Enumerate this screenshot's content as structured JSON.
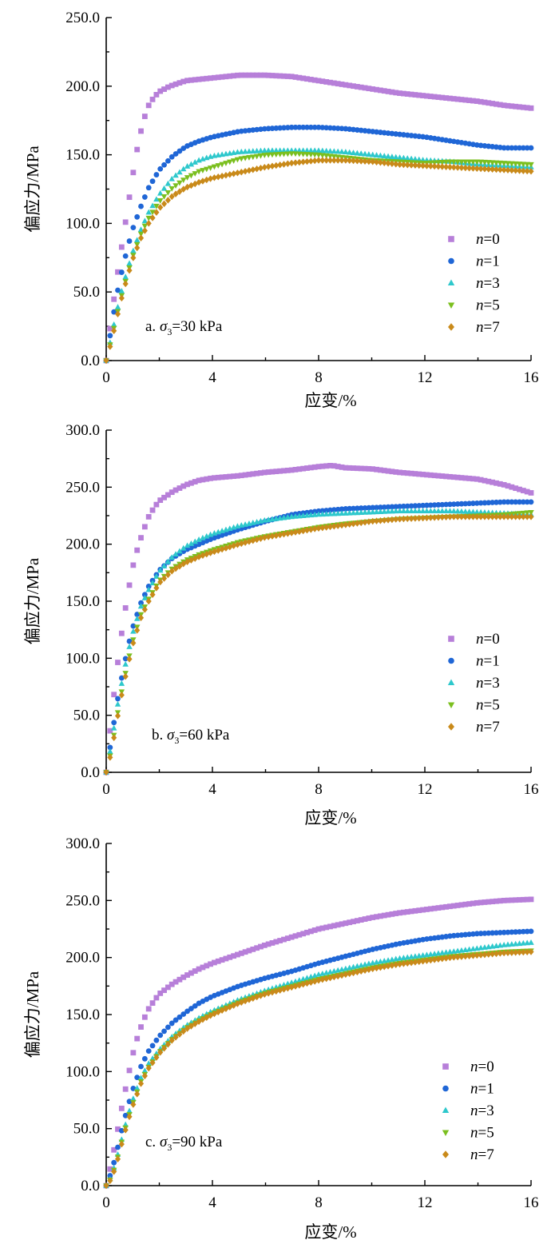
{
  "colors": {
    "n0": "#b77fd9",
    "n1": "#1f66d6",
    "n3": "#2ec8cc",
    "n5": "#7bbf1f",
    "n7": "#c98a1a"
  },
  "chart_data": [
    {
      "type": "scatter",
      "title": "a. σ3=30 kPa",
      "annotation": {
        "prefix": "a. ",
        "sigma": "σ",
        "sub": "3",
        "suffix": "=30 kPa"
      },
      "xlabel": "应变/%",
      "ylabel": "偏应力/MPa",
      "xlim": [
        0,
        16
      ],
      "ylim": [
        0,
        250
      ],
      "xticks": [
        "0",
        "4",
        "8",
        "12",
        "16"
      ],
      "yticks": [
        "0.0",
        "50.0",
        "100.0",
        "150.0",
        "200.0",
        "250.0"
      ],
      "series": [
        {
          "name": "n=0",
          "label_var": "n",
          "label_val": "=0",
          "marker": "square",
          "color_key": "n0",
          "x": [
            0,
            0.2,
            0.4,
            0.6,
            0.8,
            1.0,
            1.2,
            1.4,
            1.6,
            1.8,
            2.0,
            2.4,
            3,
            4,
            5,
            5.5,
            6,
            7,
            8,
            9,
            10,
            11,
            12,
            13,
            14,
            15,
            16
          ],
          "y": [
            0,
            32,
            60,
            85,
            110,
            135,
            158,
            175,
            186,
            192,
            196,
            200,
            204,
            206,
            208,
            208,
            208,
            207,
            204,
            201,
            198,
            195,
            193,
            191,
            189,
            186,
            184
          ]
        },
        {
          "name": "n=1",
          "label_var": "n",
          "label_val": "=1",
          "marker": "circle",
          "color_key": "n1",
          "x": [
            0,
            0.2,
            0.4,
            0.6,
            0.8,
            1.0,
            1.3,
            1.6,
            2.0,
            2.5,
            3,
            3.5,
            4,
            5,
            6,
            7,
            8,
            9,
            10,
            11,
            12,
            13,
            14,
            15,
            16
          ],
          "y": [
            0,
            25,
            48,
            66,
            82,
            96,
            112,
            126,
            139,
            149,
            156,
            160,
            163,
            167,
            169,
            170,
            170,
            169,
            167,
            165,
            163,
            160,
            157,
            155,
            155
          ]
        },
        {
          "name": "n=3",
          "label_var": "n",
          "label_val": "=3",
          "marker": "triangle",
          "color_key": "n3",
          "x": [
            0,
            0.2,
            0.4,
            0.6,
            0.8,
            1.0,
            1.3,
            1.6,
            2.0,
            2.5,
            3,
            3.5,
            4,
            5,
            6,
            7,
            8,
            9,
            10,
            11,
            12,
            13,
            14,
            15,
            16
          ],
          "y": [
            0,
            18,
            36,
            52,
            66,
            79,
            95,
            108,
            121,
            133,
            141,
            146,
            149,
            152,
            153,
            153,
            153,
            152,
            150,
            148,
            146,
            145,
            143,
            142,
            141
          ]
        },
        {
          "name": "n=5",
          "label_var": "n",
          "label_val": "=5",
          "marker": "triangle-down",
          "color_key": "n5",
          "x": [
            0,
            0.2,
            0.4,
            0.6,
            0.8,
            1.0,
            1.3,
            1.6,
            2.0,
            2.5,
            3,
            3.5,
            4,
            5,
            6,
            7,
            8,
            9,
            10,
            11,
            12,
            13,
            14,
            15,
            16
          ],
          "y": [
            0,
            16,
            33,
            49,
            63,
            76,
            92,
            104,
            116,
            126,
            133,
            138,
            141,
            147,
            150,
            151,
            150,
            148,
            146,
            145,
            144,
            145,
            145,
            144,
            143
          ]
        },
        {
          "name": "n=7",
          "label_var": "n",
          "label_val": "=7",
          "marker": "diamond",
          "color_key": "n7",
          "x": [
            0,
            0.2,
            0.4,
            0.6,
            0.8,
            1.0,
            1.3,
            1.6,
            2.0,
            2.5,
            3,
            3.5,
            4,
            5,
            6,
            7,
            8,
            9,
            10,
            11,
            12,
            13,
            14,
            15,
            16
          ],
          "y": [
            0,
            14,
            31,
            47,
            61,
            74,
            89,
            100,
            111,
            120,
            126,
            130,
            133,
            137,
            141,
            144,
            146,
            146,
            145,
            143,
            142,
            141,
            140,
            139,
            138
          ]
        }
      ]
    },
    {
      "type": "scatter",
      "title": "b. σ3=60 kPa",
      "annotation": {
        "prefix": "b. ",
        "sigma": "σ",
        "sub": "3",
        "suffix": "=60 kPa"
      },
      "xlabel": "应变/%",
      "ylabel": "偏应力/MPa",
      "xlim": [
        0,
        16
      ],
      "ylim": [
        0,
        300
      ],
      "xticks": [
        "0",
        "4",
        "8",
        "12",
        "16"
      ],
      "yticks": [
        "0.0",
        "50.0",
        "100.0",
        "150.0",
        "200.0",
        "250.0",
        "300.0"
      ],
      "series": [
        {
          "name": "n=0",
          "label_var": "n",
          "label_val": "=0",
          "marker": "square",
          "color_key": "n0",
          "x": [
            0,
            0.2,
            0.4,
            0.6,
            0.8,
            1.0,
            1.2,
            1.4,
            1.6,
            1.8,
            2.0,
            2.5,
            3,
            3.5,
            4,
            5,
            6,
            7,
            8,
            8.5,
            9,
            10,
            11,
            12,
            13,
            14,
            15,
            16
          ],
          "y": [
            0,
            50,
            90,
            125,
            155,
            180,
            198,
            212,
            224,
            232,
            238,
            246,
            252,
            256,
            258,
            260,
            263,
            265,
            268,
            269,
            267,
            266,
            263,
            261,
            259,
            257,
            252,
            245
          ]
        },
        {
          "name": "n=1",
          "label_var": "n",
          "label_val": "=1",
          "marker": "circle",
          "color_key": "n1",
          "x": [
            0,
            0.2,
            0.4,
            0.6,
            0.8,
            1.0,
            1.3,
            1.6,
            2.0,
            2.5,
            3,
            3.5,
            4,
            5,
            6,
            7,
            8,
            9,
            10,
            11,
            12,
            13,
            14,
            15,
            16
          ],
          "y": [
            0,
            30,
            60,
            85,
            108,
            127,
            148,
            163,
            177,
            188,
            195,
            200,
            205,
            213,
            220,
            226,
            229,
            231,
            232,
            233,
            234,
            235,
            236,
            237,
            237
          ]
        },
        {
          "name": "n=3",
          "label_var": "n",
          "label_val": "=3",
          "marker": "triangle",
          "color_key": "n3",
          "x": [
            0,
            0.2,
            0.4,
            0.6,
            0.8,
            1.0,
            1.3,
            1.6,
            2.0,
            2.5,
            3,
            3.5,
            4,
            5,
            6,
            7,
            8,
            9,
            10,
            11,
            12,
            13,
            14,
            15,
            16
          ],
          "y": [
            0,
            25,
            55,
            80,
            103,
            122,
            145,
            160,
            176,
            189,
            198,
            204,
            209,
            216,
            221,
            224,
            226,
            227,
            228,
            229,
            229,
            229,
            228,
            227,
            226
          ]
        },
        {
          "name": "n=5",
          "label_var": "n",
          "label_val": "=5",
          "marker": "triangle-down",
          "color_key": "n5",
          "x": [
            0,
            0.2,
            0.4,
            0.6,
            0.8,
            1.0,
            1.3,
            1.6,
            2.0,
            2.5,
            3,
            3.5,
            4,
            5,
            6,
            7,
            8,
            9,
            10,
            11,
            12,
            13,
            14,
            15,
            16
          ],
          "y": [
            0,
            20,
            48,
            73,
            95,
            115,
            138,
            152,
            168,
            179,
            186,
            191,
            195,
            202,
            207,
            211,
            215,
            218,
            220,
            222,
            223,
            224,
            225,
            226,
            228
          ]
        },
        {
          "name": "n=7",
          "label_var": "n",
          "label_val": "=7",
          "marker": "diamond",
          "color_key": "n7",
          "x": [
            0,
            0.2,
            0.4,
            0.6,
            0.8,
            1.0,
            1.3,
            1.6,
            2.0,
            2.5,
            3,
            3.5,
            4,
            5,
            6,
            7,
            8,
            9,
            10,
            11,
            12,
            13,
            14,
            15,
            16
          ],
          "y": [
            0,
            18,
            45,
            70,
            92,
            112,
            135,
            150,
            166,
            177,
            184,
            189,
            193,
            200,
            206,
            210,
            214,
            217,
            220,
            222,
            223,
            224,
            224,
            224,
            224
          ]
        }
      ]
    },
    {
      "type": "scatter",
      "title": "c. σ3=90 kPa",
      "annotation": {
        "prefix": "c. ",
        "sigma": "σ",
        "sub": "3",
        "suffix": "=90 kPa"
      },
      "xlabel": "应变/%",
      "ylabel": "偏应力/MPa",
      "xlim": [
        0,
        16
      ],
      "ylim": [
        0,
        300
      ],
      "xticks": [
        "0",
        "4",
        "8",
        "12",
        "16"
      ],
      "yticks": [
        "0.0",
        "50.0",
        "100.0",
        "150.0",
        "200.0",
        "250.0",
        "300.0"
      ],
      "series": [
        {
          "name": "n=0",
          "label_var": "n",
          "label_val": "=0",
          "marker": "square",
          "color_key": "n0",
          "x": [
            0,
            0.2,
            0.4,
            0.6,
            0.8,
            1.0,
            1.2,
            1.4,
            1.6,
            1.8,
            2.0,
            2.5,
            3,
            3.5,
            4,
            5,
            6,
            7,
            8,
            9,
            10,
            11,
            12,
            13,
            14,
            15,
            16
          ],
          "y": [
            0,
            20,
            45,
            70,
            93,
            115,
            132,
            145,
            155,
            162,
            168,
            177,
            184,
            190,
            195,
            203,
            211,
            218,
            225,
            230,
            235,
            239,
            242,
            245,
            248,
            250,
            251
          ]
        },
        {
          "name": "n=1",
          "label_var": "n",
          "label_val": "=1",
          "marker": "circle",
          "color_key": "n1",
          "x": [
            0,
            0.2,
            0.4,
            0.6,
            0.8,
            1.0,
            1.3,
            1.6,
            2.0,
            2.5,
            3,
            3.5,
            4,
            5,
            6,
            7,
            8,
            9,
            10,
            11,
            12,
            13,
            14,
            15,
            16
          ],
          "y": [
            0,
            12,
            30,
            50,
            68,
            84,
            104,
            118,
            131,
            143,
            152,
            160,
            166,
            175,
            182,
            188,
            195,
            201,
            207,
            212,
            216,
            219,
            221,
            222,
            223
          ]
        },
        {
          "name": "n=3",
          "label_var": "n",
          "label_val": "=3",
          "marker": "triangle",
          "color_key": "n3",
          "x": [
            0,
            0.2,
            0.4,
            0.6,
            0.8,
            1.0,
            1.3,
            1.6,
            2.0,
            2.5,
            3,
            3.5,
            4,
            5,
            6,
            7,
            8,
            9,
            10,
            11,
            12,
            13,
            14,
            15,
            16
          ],
          "y": [
            0,
            8,
            24,
            42,
            60,
            75,
            94,
            107,
            119,
            131,
            140,
            147,
            153,
            163,
            171,
            178,
            185,
            190,
            195,
            199,
            202,
            205,
            208,
            211,
            213
          ]
        },
        {
          "name": "n=5",
          "label_var": "n",
          "label_val": "=5",
          "marker": "triangle-down",
          "color_key": "n5",
          "x": [
            0,
            0.2,
            0.4,
            0.6,
            0.8,
            1.0,
            1.3,
            1.6,
            2.0,
            2.5,
            3,
            3.5,
            4,
            5,
            6,
            7,
            8,
            9,
            10,
            11,
            12,
            13,
            14,
            15,
            16
          ],
          "y": [
            0,
            7,
            22,
            40,
            57,
            72,
            91,
            104,
            117,
            129,
            138,
            145,
            151,
            161,
            169,
            175,
            181,
            186,
            191,
            195,
            198,
            201,
            203,
            205,
            206
          ]
        },
        {
          "name": "n=7",
          "label_var": "n",
          "label_val": "=7",
          "marker": "diamond",
          "color_key": "n7",
          "x": [
            0,
            0.2,
            0.4,
            0.6,
            0.8,
            1.0,
            1.3,
            1.6,
            2.0,
            2.5,
            3,
            3.5,
            4,
            5,
            6,
            7,
            8,
            9,
            10,
            11,
            12,
            13,
            14,
            15,
            16
          ],
          "y": [
            0,
            6,
            20,
            38,
            55,
            70,
            89,
            103,
            116,
            128,
            137,
            144,
            150,
            160,
            168,
            174,
            180,
            185,
            190,
            194,
            197,
            200,
            202,
            204,
            205
          ]
        }
      ]
    }
  ]
}
